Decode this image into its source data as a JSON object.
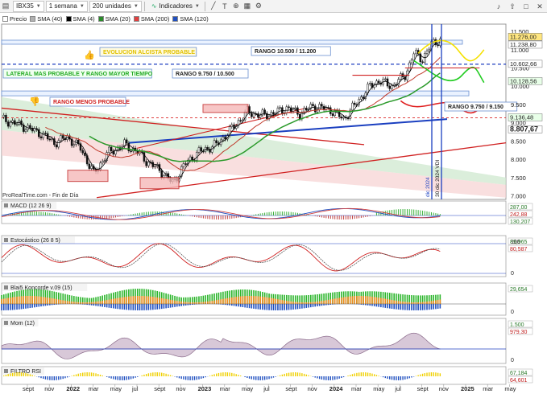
{
  "toolbar": {
    "symbol": "IBX35",
    "period": "1 semana",
    "units": "200 unidades",
    "indicators": "Indicadores"
  },
  "legend": [
    {
      "label": "Precio",
      "color": "#ffffff"
    },
    {
      "label": "SMA (40)",
      "color": "#b0b0b0"
    },
    {
      "label": "SMA (4)",
      "color": "#000000"
    },
    {
      "label": "SMA (20)",
      "color": "#2a8a2a"
    },
    {
      "label": "SMA (200)",
      "color": "#e04040"
    },
    {
      "label": "SMA (120)",
      "color": "#2050c0"
    }
  ],
  "main_chart": {
    "annotations": {
      "alcista": "EVOLUCION ALCISTA PROBABLE",
      "lateral": "LATERAL MAS PROBABLE Y RANGO MAYOR TIEMPO",
      "menos": "RANGO MENOS PROBABLE",
      "rango_alto": "RANGO 10.500 / 11.200",
      "rango_medio": "RANGO 9.750 / 10.500",
      "rango_bajo": "RANGO 9.750 / 9.150"
    },
    "source": "ProRealTime.com - Fin de Día",
    "vertical_labels": [
      "dic 2024",
      "30 dic 2024 VDI"
    ],
    "price_axis": [
      "11.500",
      "11.000",
      "10.500",
      "10.000",
      "9.500",
      "9.000",
      "8.500",
      "8.000",
      "7.500",
      "7.000"
    ],
    "price_tags": [
      {
        "text": "11.276,00",
        "bg": "#ffe680"
      },
      {
        "text": "11.238,80",
        "bg": "#ffffff"
      },
      {
        "text": "10.602,66",
        "bg": "#ffffff"
      },
      {
        "text": "10.128,56",
        "bg": "#e8ffe8"
      },
      {
        "text": "9.136,48",
        "bg": "#e8ffe8"
      },
      {
        "text": "8.807,67",
        "bg": "#ffffff"
      }
    ]
  },
  "panels": [
    {
      "title": "MACD (12 26 9)",
      "values": [
        "287,00",
        "242,88",
        "130,207"
      ]
    },
    {
      "title": "Estocástico (26 8 5)",
      "values": [
        "89,965",
        "80,587"
      ],
      "axis": [
        "100",
        "0"
      ]
    },
    {
      "title": "Blai5 Koncorde v.09 (15)",
      "values": [
        "29,654"
      ],
      "axis": [
        "0"
      ]
    },
    {
      "title": "Mom (12)",
      "values": [
        "1.500",
        "979,30"
      ],
      "axis": [
        "0"
      ]
    },
    {
      "title": "FILTRO RSI",
      "values": [
        "67,184",
        "64,601"
      ]
    }
  ],
  "time_axis": [
    "sept",
    "nov",
    "2022",
    "mar",
    "may",
    "jul",
    "sept",
    "nov",
    "2023",
    "mar",
    "may",
    "jul",
    "sept",
    "nov",
    "2024",
    "mar",
    "may",
    "jul",
    "sept",
    "nov",
    "2025",
    "mar",
    "may"
  ]
}
